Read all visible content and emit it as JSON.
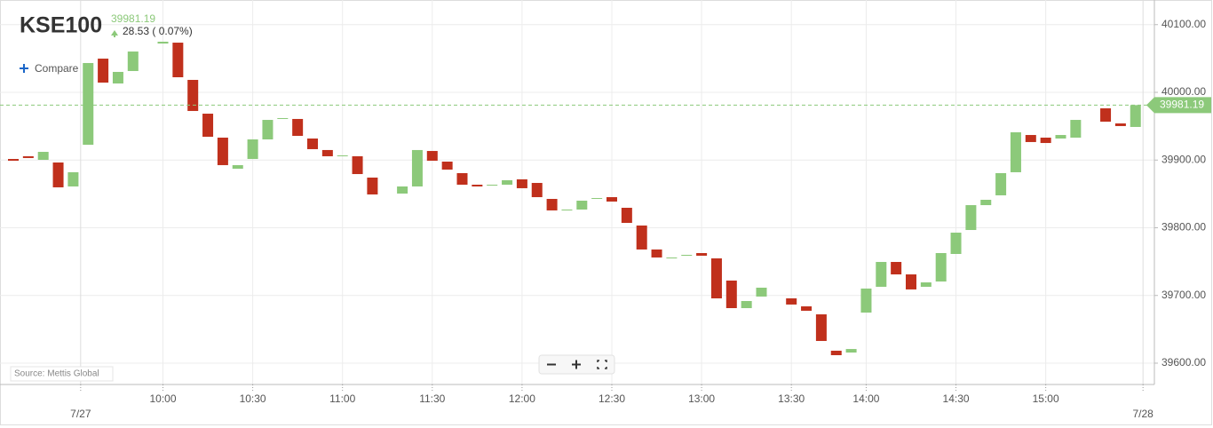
{
  "chart_data": {
    "type": "candlestick",
    "title": "KSE100",
    "last_price": 39981.19,
    "change_text": "28.53 ( 0.07%)",
    "compare_label": "Compare",
    "source": "Source: Mettis Global",
    "up_color": "#8cc97a",
    "down_color": "#c0301c",
    "last_color": "#8cc97a",
    "categories": [
      null,
      null,
      null,
      null,
      null,
      null,
      null,
      null,
      null,
      null,
      "10:00",
      null,
      null,
      null,
      null,
      null,
      "10:30",
      null,
      null,
      null,
      null,
      null,
      "11:00",
      null,
      null,
      null,
      null,
      null,
      "11:30",
      null,
      null,
      null,
      null,
      null,
      "12:00",
      null,
      null,
      null,
      null,
      null,
      "12:30",
      null,
      null,
      null,
      null,
      null,
      "13:00",
      null,
      null,
      null,
      null,
      null,
      "13:30",
      null,
      null,
      null,
      null,
      "14:00",
      null,
      null,
      null,
      null,
      null,
      "14:30",
      null,
      null,
      null,
      null,
      null,
      "15:00",
      null,
      null,
      null,
      null,
      null,
      null
    ],
    "date_ticks": [
      {
        "value": 4.5,
        "label": "7/27"
      },
      {
        "value": 75.5,
        "label": "7/28"
      }
    ],
    "open": [
      39901.6,
      39905.6,
      39900.3,
      39896.4,
      39861.0,
      39922.6,
      40049.8,
      40013.1,
      40031.5,
      null,
      40072.1,
      40073.4,
      40018.4,
      39968.5,
      39933.1,
      39887.2,
      39901.6,
      39930.5,
      39960.7,
      39960.7,
      39931.8,
      39914.8,
      39905.6,
      39905.6,
      39874.1,
      null,
      39850.5,
      39861.0,
      39913.4,
      39897.7,
      39880.7,
      39863.6,
      39862.3,
      39863.6,
      39871.5,
      39866.2,
      39842.6,
      39825.6,
      39826.9,
      39842.6,
      39845.2,
      39829.5,
      39803.3,
      39767.9,
      39754.8,
      39758.7,
      39762.6,
      39754.8,
      39722.0,
      39681.3,
      39698.4,
      null,
      39695.7,
      39683.9,
      39672.1,
      39618.4,
      39615.7,
      39674.7,
      39712.8,
      39749.5,
      39731.1,
      39712.8,
      39720.6,
      39761.3,
      39796.7,
      39833.4,
      39847.9,
      39882.0,
      39937.0,
      39933.1,
      39931.8,
      39933.1,
      null,
      39976.4,
      39954.1,
      39948.9
    ],
    "close": [
      39899.0,
      39903.0,
      39912.1,
      39859.7,
      39882.0,
      40043.3,
      40014.4,
      40030.2,
      40060.3,
      null,
      40074.8,
      40022.3,
      39972.5,
      39934.4,
      39892.5,
      39892.5,
      39930.5,
      39959.3,
      39962.0,
      39935.7,
      39916.1,
      39905.6,
      39906.9,
      39879.3,
      39849.2,
      null,
      39861.0,
      39914.8,
      39899.0,
      39885.9,
      39863.6,
      39861.0,
      39863.6,
      39870.2,
      39858.4,
      39845.2,
      39825.6,
      39826.9,
      39840.0,
      39843.9,
      39838.7,
      39807.2,
      39767.9,
      39756.1,
      39756.1,
      39760.0,
      39758.7,
      39695.7,
      39681.3,
      39691.8,
      39711.5,
      null,
      39686.6,
      39677.4,
      39632.8,
      39611.8,
      39620.9,
      39710.2,
      39749.5,
      39731.1,
      39708.9,
      39719.3,
      39762.6,
      39792.8,
      39833.4,
      39841.3,
      39880.7,
      39941.0,
      39926.6,
      39925.2,
      39937.0,
      39959.3,
      null,
      39956.7,
      39950.2,
      39981.19
    ],
    "ylim": [
      39568.5,
      40136.4
    ],
    "yticks": [
      {
        "value": 39600,
        "label": "39600.00"
      },
      {
        "value": 39700,
        "label": "39700.00"
      },
      {
        "value": 39800,
        "label": "39800.00"
      },
      {
        "value": 39900,
        "label": "39900.00"
      },
      {
        "value": 40000,
        "label": "40000.00"
      },
      {
        "value": 40100,
        "label": "40100.00"
      }
    ],
    "grid": true
  }
}
